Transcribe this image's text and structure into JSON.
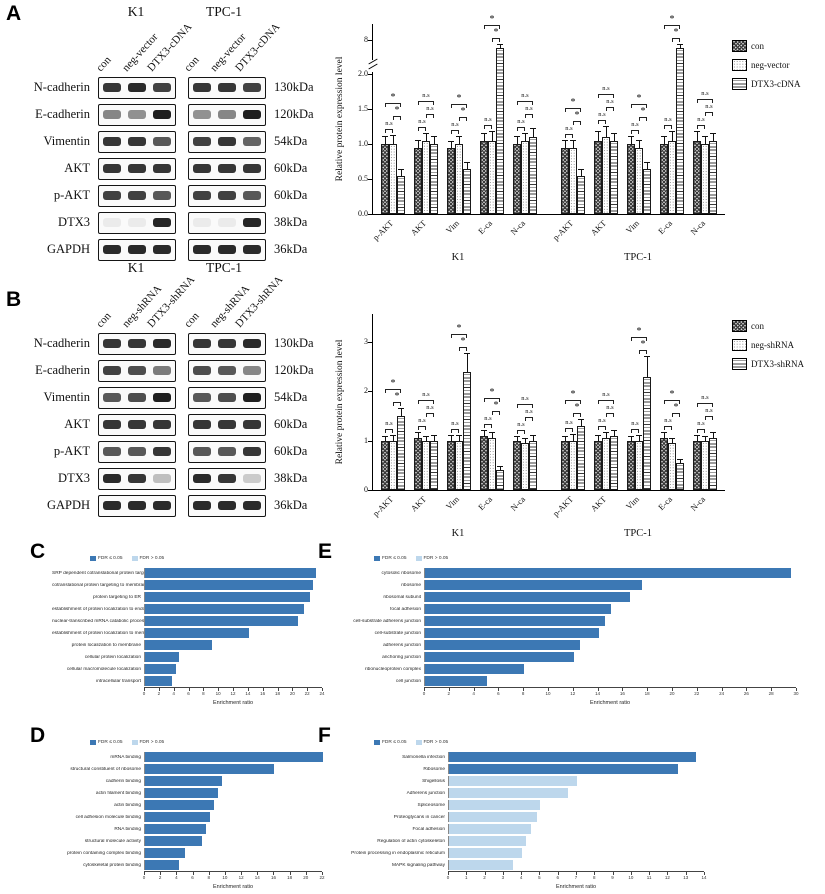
{
  "panel_labels": {
    "A": "A",
    "B": "B",
    "C": "C",
    "D": "D",
    "E": "E",
    "F": "F"
  },
  "colors": {
    "fdr_low": "#3c78b4",
    "fdr_high": "#bdd7ec",
    "bar_border": "#1a1a1a",
    "band": "#141414"
  },
  "panelA_blots": {
    "cell_lines": [
      "K1",
      "TPC-1"
    ],
    "lanes": [
      "con",
      "neg-vector",
      "DTX3-cDNA"
    ],
    "rows": [
      {
        "protein": "N-cadherin",
        "kda": "130kDa",
        "bands": {
          "K1": [
            0.85,
            0.9,
            0.8
          ],
          "TPC-1": [
            0.85,
            0.85,
            0.8
          ]
        }
      },
      {
        "protein": "E-cadherin",
        "kda": "120kDa",
        "bands": {
          "K1": [
            0.5,
            0.45,
            0.95
          ],
          "TPC-1": [
            0.45,
            0.5,
            0.95
          ]
        }
      },
      {
        "protein": "Vimentin",
        "kda": "54kDa",
        "bands": {
          "K1": [
            0.85,
            0.85,
            0.7
          ],
          "TPC-1": [
            0.8,
            0.85,
            0.65
          ]
        }
      },
      {
        "protein": "AKT",
        "kda": "60kDa",
        "bands": {
          "K1": [
            0.85,
            0.85,
            0.85
          ],
          "TPC-1": [
            0.85,
            0.85,
            0.85
          ]
        }
      },
      {
        "protein": "p-AKT",
        "kda": "60kDa",
        "bands": {
          "K1": [
            0.8,
            0.8,
            0.7
          ],
          "TPC-1": [
            0.8,
            0.8,
            0.7
          ]
        }
      },
      {
        "protein": "DTX3",
        "kda": "38kDa",
        "bands": {
          "K1": [
            0.06,
            0.06,
            0.92
          ],
          "TPC-1": [
            0.06,
            0.06,
            0.92
          ]
        }
      },
      {
        "protein": "GAPDH",
        "kda": "36kDa",
        "bands": {
          "K1": [
            0.9,
            0.9,
            0.9
          ],
          "TPC-1": [
            0.9,
            0.9,
            0.9
          ]
        }
      }
    ]
  },
  "panelB_blots": {
    "cell_lines": [
      "K1",
      "TPC-1"
    ],
    "lanes": [
      "con",
      "neg-shRNA",
      "DTX3-shRNA"
    ],
    "rows": [
      {
        "protein": "N-cadherin",
        "kda": "130kDa",
        "bands": {
          "K1": [
            0.85,
            0.85,
            0.9
          ],
          "TPC-1": [
            0.85,
            0.85,
            0.9
          ]
        }
      },
      {
        "protein": "E-cadherin",
        "kda": "120kDa",
        "bands": {
          "K1": [
            0.8,
            0.75,
            0.55
          ],
          "TPC-1": [
            0.75,
            0.7,
            0.5
          ]
        }
      },
      {
        "protein": "Vimentin",
        "kda": "54kDa",
        "bands": {
          "K1": [
            0.7,
            0.75,
            0.95
          ],
          "TPC-1": [
            0.7,
            0.75,
            0.95
          ]
        }
      },
      {
        "protein": "AKT",
        "kda": "60kDa",
        "bands": {
          "K1": [
            0.85,
            0.85,
            0.85
          ],
          "TPC-1": [
            0.85,
            0.85,
            0.85
          ]
        }
      },
      {
        "protein": "p-AKT",
        "kda": "60kDa",
        "bands": {
          "K1": [
            0.7,
            0.7,
            0.85
          ],
          "TPC-1": [
            0.7,
            0.7,
            0.85
          ]
        }
      },
      {
        "protein": "DTX3",
        "kda": "38kDa",
        "bands": {
          "K1": [
            0.9,
            0.85,
            0.25
          ],
          "TPC-1": [
            0.9,
            0.85,
            0.2
          ]
        }
      },
      {
        "protein": "GAPDH",
        "kda": "36kDa",
        "bands": {
          "K1": [
            0.9,
            0.9,
            0.9
          ],
          "TPC-1": [
            0.9,
            0.9,
            0.9
          ]
        }
      }
    ]
  },
  "chart_data": [
    {
      "id": "chartA",
      "type": "grouped-bar",
      "ylabel": "Relative protein expression level",
      "legend": [
        "con",
        "neg-vector",
        "DTX3-cDNA"
      ],
      "groups": [
        "K1",
        "TPC-1"
      ],
      "categories": [
        "p-AKT",
        "AKT",
        "Vim",
        "E-ca",
        "N-ca"
      ],
      "yticks": [
        0,
        0.5,
        1,
        1.5,
        2,
        8
      ],
      "ytick_labels": [
        "0.0",
        "0.5",
        "1.0",
        "1.5",
        "2.0",
        "8"
      ],
      "ybreak_at": 2,
      "ymax": 8,
      "values": {
        "K1": [
          [
            1.0,
            1.0,
            0.55
          ],
          [
            0.95,
            1.05,
            1.0
          ],
          [
            0.95,
            1.0,
            0.65
          ],
          [
            1.05,
            1.05,
            6.6
          ],
          [
            1.0,
            1.05,
            1.1
          ]
        ],
        "TPC-1": [
          [
            0.95,
            0.95,
            0.55
          ],
          [
            1.05,
            1.1,
            1.05
          ],
          [
            1.0,
            0.95,
            0.65
          ],
          [
            1.0,
            1.05,
            6.6
          ],
          [
            1.05,
            1.0,
            1.05
          ]
        ]
      },
      "errors": {
        "K1": [
          [
            0.1,
            0.12,
            0.08
          ],
          [
            0.1,
            0.1,
            0.1
          ],
          [
            0.08,
            0.1,
            0.08
          ],
          [
            0.1,
            0.12,
            0.5
          ],
          [
            0.1,
            0.1,
            0.12
          ]
        ],
        "TPC-1": [
          [
            0.1,
            0.1,
            0.08
          ],
          [
            0.12,
            0.15,
            0.1
          ],
          [
            0.1,
            0.1,
            0.08
          ],
          [
            0.1,
            0.12,
            0.5
          ],
          [
            0.12,
            0.1,
            0.1
          ]
        ]
      },
      "sig": {
        "K1": [
          [
            "n.s",
            "*",
            "*"
          ],
          [
            "n.s",
            "n.s",
            "n.s"
          ],
          [
            "n.s",
            "*",
            "*"
          ],
          [
            "n.s",
            "*",
            "*"
          ],
          [
            "n.s",
            "n.s",
            "n.s"
          ]
        ],
        "TPC-1": [
          [
            "n.s",
            "*",
            "*"
          ],
          [
            "n.s",
            "n.s",
            "n.s"
          ],
          [
            "n.s",
            "*",
            "*"
          ],
          [
            "n.s",
            "*",
            "*"
          ],
          [
            "n.s",
            "n.s",
            "n.s"
          ]
        ]
      }
    },
    {
      "id": "chartB",
      "type": "grouped-bar",
      "ylabel": "Relative protein expression level",
      "legend": [
        "con",
        "neg-shRNA",
        "DTX3-shRNA"
      ],
      "groups": [
        "K1",
        "TPC-1"
      ],
      "categories": [
        "p-AKT",
        "AKT",
        "Vim",
        "E-ca",
        "N-ca"
      ],
      "yticks": [
        0,
        1,
        2,
        3
      ],
      "ytick_labels": [
        "0",
        "1",
        "2",
        "3"
      ],
      "ymax": 3,
      "values": {
        "K1": [
          [
            1.0,
            1.0,
            1.5
          ],
          [
            1.05,
            1.0,
            1.0
          ],
          [
            1.0,
            1.0,
            2.4
          ],
          [
            1.1,
            1.05,
            0.4
          ],
          [
            1.0,
            0.95,
            1.0
          ]
        ],
        "TPC-1": [
          [
            1.0,
            1.0,
            1.3
          ],
          [
            1.0,
            1.05,
            1.1
          ],
          [
            1.0,
            1.0,
            2.3
          ],
          [
            1.05,
            0.95,
            0.55
          ],
          [
            1.0,
            1.0,
            1.05
          ]
        ]
      },
      "errors": {
        "K1": [
          [
            0.08,
            0.1,
            0.15
          ],
          [
            0.1,
            0.08,
            0.1
          ],
          [
            0.1,
            0.1,
            0.35
          ],
          [
            0.1,
            0.1,
            0.06
          ],
          [
            0.08,
            0.08,
            0.1
          ]
        ],
        "TPC-1": [
          [
            0.08,
            0.12,
            0.12
          ],
          [
            0.1,
            0.1,
            0.1
          ],
          [
            0.08,
            0.1,
            0.4
          ],
          [
            0.1,
            0.08,
            0.06
          ],
          [
            0.1,
            0.08,
            0.1
          ]
        ]
      },
      "sig": {
        "K1": [
          [
            "n.s",
            "*",
            "*"
          ],
          [
            "n.s",
            "n.s",
            "n.s"
          ],
          [
            "n.s",
            "*",
            "*"
          ],
          [
            "n.s",
            "*",
            "*"
          ],
          [
            "n.s",
            "n.s",
            "n.s"
          ]
        ],
        "TPC-1": [
          [
            "n.s",
            "*",
            "*"
          ],
          [
            "n.s",
            "n.s",
            "n.s"
          ],
          [
            "n.s",
            "*",
            "*"
          ],
          [
            "n.s",
            "*",
            "*"
          ],
          [
            "n.s",
            "n.s",
            "n.s"
          ]
        ]
      }
    },
    {
      "id": "chartC",
      "type": "hbar",
      "legend": [
        "FDR ≤ 0.05",
        "FDR > 0.05"
      ],
      "xlabel": "Enrichment ratio",
      "xmax": 24,
      "xticks": [
        0,
        2,
        4,
        6,
        8,
        10,
        12,
        14,
        16,
        18,
        20,
        22,
        24
      ],
      "categories": [
        "SRP dependent cotranslational protein targe...",
        "cotranslational protein targeting to membrane",
        "protein targeting to ER",
        "establishment of protein localization to endo...",
        "nuclear-transcribed mRNA catabolic process...",
        "establishment of protein localization to mem...",
        "protein localization to membrane",
        "cellular protein localization",
        "cellular macromolecule localization",
        "intracellular transport"
      ],
      "values": [
        23,
        22.6,
        22.2,
        21.4,
        20.6,
        14,
        9,
        4.6,
        4.2,
        3.6
      ],
      "fdr_low_flags": [
        true,
        true,
        true,
        true,
        true,
        true,
        true,
        true,
        true,
        true
      ]
    },
    {
      "id": "chartD",
      "type": "hbar",
      "legend": [
        "FDR ≤ 0.05",
        "FDR > 0.05"
      ],
      "xlabel": "Enrichment ratio",
      "xmax": 22,
      "xticks": [
        0,
        2,
        4,
        6,
        8,
        10,
        12,
        14,
        16,
        18,
        20,
        22
      ],
      "categories": [
        "mRNA binding",
        "structural constituent of ribosome",
        "cadherin binding",
        "actin filament binding",
        "actin binding",
        "cell adhesion molecule binding",
        "RNA binding",
        "structural molecule activity",
        "protein containing complex binding",
        "cytoskeletal protein binding"
      ],
      "values": [
        22,
        16,
        9.5,
        9,
        8.5,
        8,
        7.5,
        7,
        5,
        4.2
      ],
      "fdr_low_flags": [
        true,
        true,
        true,
        true,
        true,
        true,
        true,
        true,
        true,
        true
      ]
    },
    {
      "id": "chartE",
      "type": "hbar",
      "legend": [
        "FDR ≤ 0.05",
        "FDR > 0.05"
      ],
      "xlabel": "Enrichment ratio",
      "xmax": 30,
      "xticks": [
        0,
        2,
        4,
        6,
        8,
        10,
        12,
        14,
        16,
        18,
        20,
        22,
        24,
        26,
        28,
        30
      ],
      "categories": [
        "cytosolic ribosome",
        "ribosome",
        "ribosomal subunit",
        "focal adhesion",
        "cell-substrate adherens junction",
        "cell-substrate junction",
        "adherens junction",
        "anchoring junction",
        "ribonucleoprotein complex",
        "cell junction"
      ],
      "values": [
        29.5,
        17.5,
        16.5,
        15,
        14.5,
        14,
        12.5,
        12,
        8,
        5
      ],
      "fdr_low_flags": [
        true,
        true,
        true,
        true,
        true,
        true,
        true,
        true,
        true,
        true
      ]
    },
    {
      "id": "chartF",
      "type": "hbar",
      "legend": [
        "FDR ≤ 0.05",
        "FDR > 0.05"
      ],
      "xlabel": "Enrichment ratio",
      "xmax": 14,
      "xticks": [
        0,
        1,
        2,
        3,
        4,
        5,
        6,
        7,
        8,
        9,
        10,
        11,
        12,
        13,
        14
      ],
      "categories": [
        "Salmonella infection",
        "Ribosome",
        "Shigellosis",
        "Adherens junction",
        "Spliceosome",
        "Proteoglycans in cancer",
        "Focal adhesion",
        "Regulation of actin cytoskeleton",
        "Protein processing in endoplasmic reticulum",
        "MAPK signaling pathway"
      ],
      "values": [
        13.5,
        12.5,
        7,
        6.5,
        5,
        4.8,
        4.5,
        4.2,
        4,
        3.5
      ],
      "fdr_low_flags": [
        true,
        true,
        false,
        false,
        false,
        false,
        false,
        false,
        false,
        false
      ]
    }
  ]
}
